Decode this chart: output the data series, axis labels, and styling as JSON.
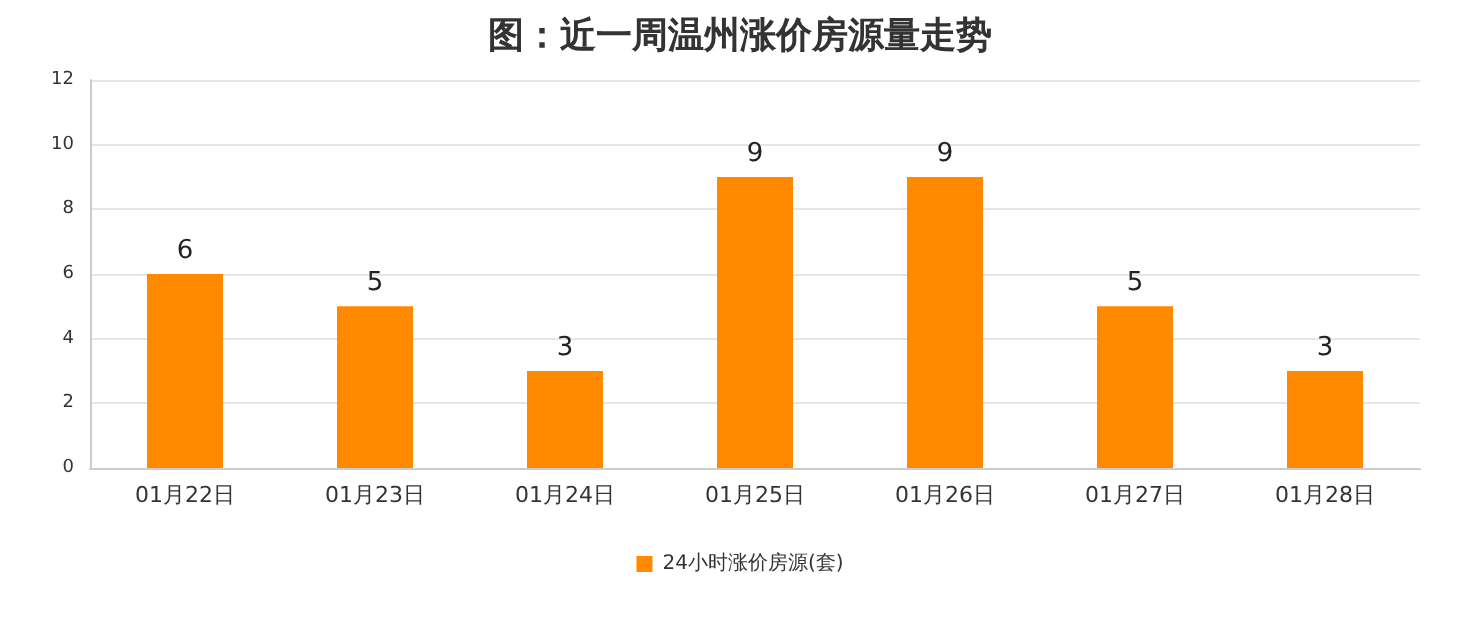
{
  "chart_data": {
    "type": "bar",
    "title": "图：近一周温州涨价房源量走势",
    "categories": [
      "01月22日",
      "01月23日",
      "01月24日",
      "01月25日",
      "01月26日",
      "01月27日",
      "01月28日"
    ],
    "series": [
      {
        "name": "24小时涨价房源(套)",
        "color": "#ff8a00",
        "values": [
          6,
          5,
          3,
          9,
          9,
          5,
          3
        ]
      }
    ],
    "ylim": [
      0,
      12
    ],
    "yticks": [
      0,
      2,
      4,
      6,
      8,
      10,
      12
    ],
    "grid": "y",
    "legend": "bottom",
    "data_labels": true
  }
}
